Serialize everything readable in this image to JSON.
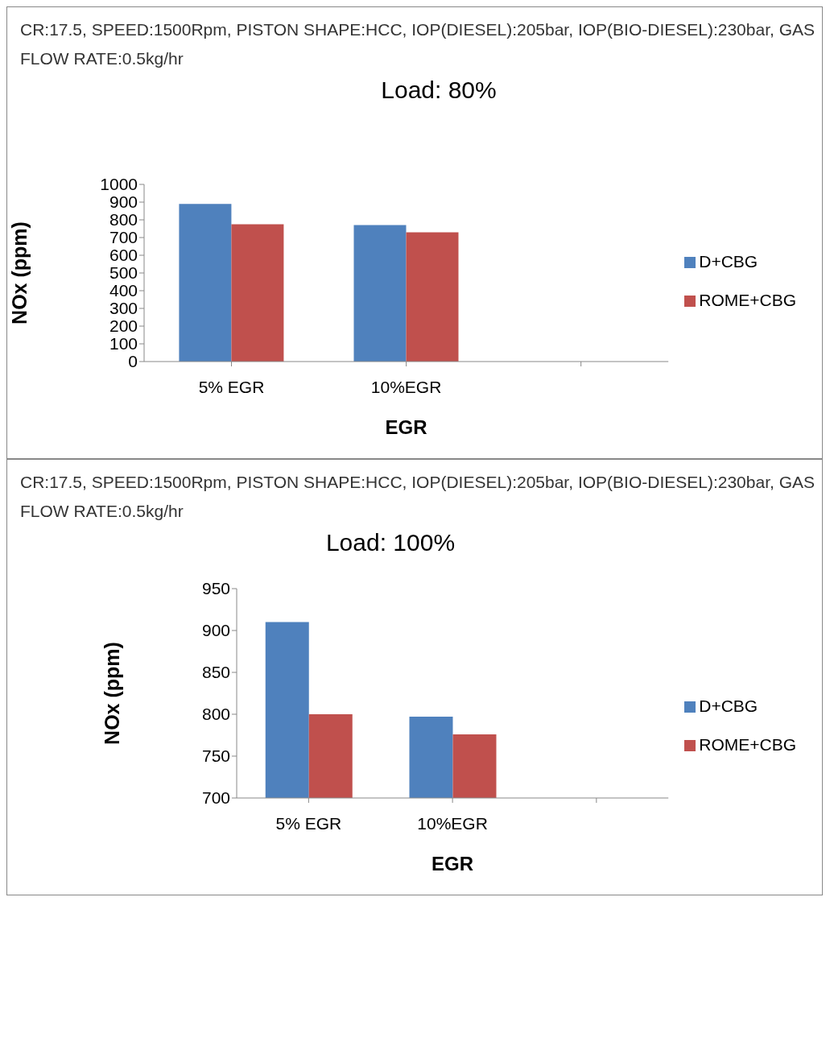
{
  "chart_data": [
    {
      "type": "bar",
      "subtitle": "CR:17.5, SPEED:1500Rpm, PISTON SHAPE:HCC,  IOP(DIESEL):205bar,  IOP(BIO-DIESEL):230bar, GAS FLOW RATE:0.5kg/hr",
      "title": "Load: 80%",
      "xlabel": "EGR",
      "ylabel": "NOx (ppm)",
      "categories": [
        "5% EGR",
        "10%EGR",
        null
      ],
      "series": [
        {
          "name": "D+CBG",
          "color": "#4f81bd",
          "values": [
            890,
            770,
            null
          ]
        },
        {
          "name": "ROME+CBG",
          "color": "#c0504d",
          "values": [
            775,
            730,
            null
          ]
        }
      ],
      "ylim": [
        0,
        1000
      ],
      "yticks": [
        0,
        100,
        200,
        300,
        400,
        500,
        600,
        700,
        800,
        900,
        1000
      ],
      "grid": false,
      "legend": "right"
    },
    {
      "type": "bar",
      "subtitle": "CR:17.5, SPEED:1500Rpm, PISTON SHAPE:HCC,  IOP(DIESEL):205bar,  IOP(BIO-DIESEL):230bar, GAS FLOW RATE:0.5kg/hr",
      "title": "Load: 100%",
      "xlabel": "EGR",
      "ylabel": "NOx (ppm)",
      "categories": [
        "5% EGR",
        "10%EGR",
        null
      ],
      "series": [
        {
          "name": "D+CBG",
          "color": "#4f81bd",
          "values": [
            910,
            797,
            null
          ]
        },
        {
          "name": "ROME+CBG",
          "color": "#c0504d",
          "values": [
            800,
            776,
            null
          ]
        }
      ],
      "ylim": [
        700,
        950
      ],
      "yticks": [
        700,
        750,
        800,
        850,
        900,
        950
      ],
      "grid": false,
      "legend": "right"
    }
  ]
}
